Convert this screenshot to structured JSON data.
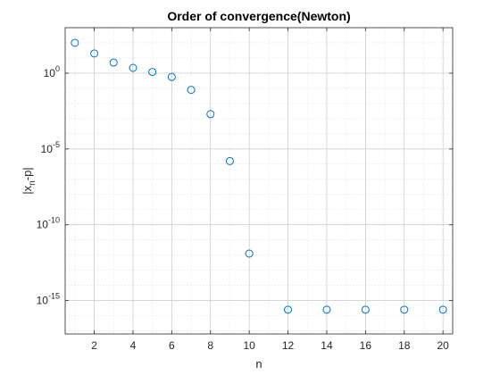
{
  "chart_data": {
    "type": "scatter",
    "title": "Order of convergence(Newton)",
    "xlabel": "n",
    "ylabel": {
      "base": "|x",
      "sub": "n",
      "rest": "-p|"
    },
    "xlim": [
      0.5,
      20.5
    ],
    "ylog_range": [
      -17.2,
      3.0
    ],
    "yscale": "log",
    "grid": true,
    "marker": "circle",
    "marker_color": "#0072BD",
    "x_ticks": [
      2,
      4,
      6,
      8,
      10,
      12,
      14,
      16,
      18,
      20
    ],
    "y_ticks": [
      {
        "value": 0,
        "base": "10",
        "exp": "0"
      },
      {
        "value": -5,
        "base": "10",
        "exp": "-5"
      },
      {
        "value": -10,
        "base": "10",
        "exp": "-10"
      },
      {
        "value": -15,
        "base": "10",
        "exp": "-15"
      }
    ],
    "x": [
      1,
      2,
      3,
      4,
      5,
      6,
      7,
      8,
      9,
      10,
      12,
      14,
      16,
      18,
      20
    ],
    "y": [
      2.0,
      1.3,
      0.7,
      0.35,
      0.08,
      -0.25,
      -1.1,
      -2.7,
      -5.8,
      -11.9,
      -15.6,
      -15.6,
      -15.6,
      -15.6,
      -15.6
    ]
  }
}
